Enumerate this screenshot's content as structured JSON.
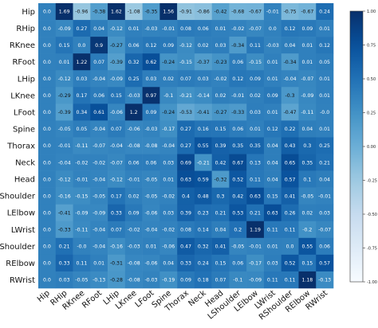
{
  "chart_data": {
    "type": "heatmap",
    "title": "",
    "xlabel": "",
    "ylabel": "",
    "labels": [
      "Hip",
      "RHip",
      "RKnee",
      "RFoot",
      "LHip",
      "LKnee",
      "LFoot",
      "Spine",
      "Thorax",
      "Neck",
      "Head",
      "LShoulder",
      "LElbow",
      "LWrist",
      "RShoulder",
      "RElbow",
      "RWrist"
    ],
    "values": [
      [
        0.0,
        1.69,
        -0.96,
        -0.38,
        1.62,
        -1.08,
        -0.35,
        1.56,
        -0.91,
        -0.86,
        -0.42,
        -0.68,
        -0.67,
        -0.01,
        -0.75,
        -0.67,
        0.24
      ],
      [
        0.0,
        -0.09,
        0.27,
        0.04,
        -0.12,
        0.01,
        -0.03,
        -0.01,
        0.08,
        0.06,
        0.01,
        -0.02,
        -0.07,
        0.0,
        0.12,
        0.09,
        0.01
      ],
      [
        0.0,
        0.15,
        0.0,
        0.9,
        -0.27,
        0.06,
        0.12,
        0.09,
        -0.12,
        0.02,
        0.03,
        -0.34,
        0.11,
        -0.03,
        0.04,
        0.01,
        0.12
      ],
      [
        0.0,
        0.01,
        1.22,
        0.07,
        -0.39,
        0.32,
        0.62,
        -0.24,
        -0.15,
        -0.37,
        -0.23,
        0.06,
        -0.15,
        0.01,
        -0.34,
        0.01,
        0.05
      ],
      [
        0.0,
        -0.12,
        0.03,
        -0.04,
        -0.09,
        0.25,
        0.03,
        0.02,
        0.07,
        0.03,
        -0.02,
        0.12,
        0.09,
        0.01,
        -0.04,
        -0.07,
        0.01
      ],
      [
        0.0,
        -0.29,
        0.17,
        0.06,
        0.15,
        -0.03,
        0.97,
        -0.1,
        -0.21,
        -0.14,
        0.02,
        -0.01,
        0.02,
        0.09,
        -0.3,
        -0.09,
        0.01
      ],
      [
        0.0,
        -0.39,
        0.34,
        0.61,
        -0.06,
        1.2,
        0.09,
        -0.24,
        -0.53,
        -0.41,
        -0.27,
        -0.33,
        0.03,
        0.01,
        -0.47,
        -0.11,
        -0.0
      ],
      [
        0.0,
        -0.05,
        0.05,
        -0.04,
        0.07,
        -0.06,
        -0.03,
        -0.17,
        0.27,
        0.16,
        0.15,
        0.06,
        0.01,
        0.12,
        0.22,
        0.04,
        0.01
      ],
      [
        0.0,
        -0.01,
        -0.11,
        -0.07,
        -0.04,
        -0.08,
        -0.08,
        -0.04,
        0.27,
        0.55,
        0.39,
        0.35,
        0.35,
        0.04,
        0.43,
        0.3,
        0.25
      ],
      [
        0.0,
        -0.04,
        -0.02,
        -0.02,
        -0.07,
        0.06,
        0.06,
        0.03,
        0.69,
        -0.21,
        0.42,
        0.67,
        0.13,
        0.04,
        0.65,
        0.35,
        0.21
      ],
      [
        0.0,
        -0.12,
        -0.01,
        -0.04,
        -0.12,
        -0.01,
        -0.05,
        0.01,
        0.63,
        0.59,
        -0.32,
        0.52,
        0.11,
        0.04,
        0.57,
        0.1,
        0.04
      ],
      [
        0.0,
        -0.16,
        -0.15,
        -0.05,
        0.17,
        0.02,
        -0.05,
        -0.02,
        0.4,
        0.48,
        0.3,
        0.42,
        0.63,
        0.15,
        0.41,
        -0.05,
        -0.01
      ],
      [
        0.0,
        -0.41,
        -0.09,
        -0.09,
        0.33,
        0.09,
        -0.06,
        0.03,
        0.39,
        0.23,
        0.21,
        0.53,
        0.21,
        0.63,
        0.26,
        0.02,
        0.03
      ],
      [
        0.0,
        -0.33,
        -0.11,
        -0.04,
        0.07,
        -0.02,
        -0.04,
        -0.02,
        0.08,
        0.14,
        0.04,
        0.2,
        1.19,
        0.11,
        0.11,
        -0.2,
        -0.07
      ],
      [
        0.0,
        0.21,
        -0.0,
        -0.04,
        -0.16,
        -0.03,
        0.01,
        -0.06,
        0.47,
        0.32,
        0.41,
        -0.05,
        -0.01,
        0.01,
        0.0,
        0.55,
        0.06
      ],
      [
        0.0,
        0.33,
        0.11,
        0.01,
        -0.31,
        -0.08,
        -0.06,
        0.04,
        0.33,
        0.24,
        0.15,
        0.06,
        -0.17,
        0.03,
        0.52,
        0.15,
        0.57
      ],
      [
        0.0,
        0.03,
        -0.05,
        -0.13,
        -0.28,
        -0.08,
        -0.03,
        -0.19,
        0.09,
        0.18,
        0.07,
        -0.1,
        -0.09,
        0.11,
        0.11,
        1.18,
        -0.13
      ]
    ],
    "colorbar": {
      "vmin": -1.0,
      "vmax": 1.0,
      "ticks": [
        "-1.00",
        "-0.75",
        "-0.50",
        "-0.25",
        "0.00",
        "0.25",
        "0.50",
        "0.75",
        "1.00"
      ],
      "low_color": "#ffffff",
      "high_color": "#08306b"
    },
    "grid": false
  }
}
